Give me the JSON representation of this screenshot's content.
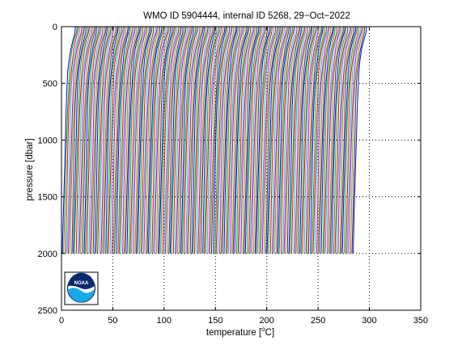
{
  "chart_data": {
    "type": "line",
    "title": "WMO ID 5904444, internal ID 5268, 29−Oct−2022",
    "xlabel_prefix": "temperature [",
    "xlabel_sup": "o",
    "xlabel_suffix": "C]",
    "ylabel": "pressure [dbar]",
    "xlim": [
      0,
      350
    ],
    "ylim": [
      2500,
      0
    ],
    "y_reversed": true,
    "x_ticks": [
      "0",
      "50",
      "100",
      "150",
      "200",
      "250",
      "300",
      "350"
    ],
    "y_ticks": [
      "0",
      "500",
      "1000",
      "1500",
      "2000",
      "2500"
    ],
    "grid": true,
    "grid_style": "dotted",
    "legend": "none",
    "series_colors": [
      "#0000ff",
      "#00aa00",
      "#ff0000",
      "#00bfbf",
      "#bf00bf",
      "#8a8a00",
      "#333333"
    ],
    "profile_shape": {
      "pressure_dbar": [
        0,
        50,
        100,
        200,
        300,
        400,
        500,
        700,
        1000,
        1500,
        2000
      ],
      "temperature_offset_C": [
        13.5,
        13.0,
        11.5,
        9.0,
        7.5,
        6.3,
        5.6,
        4.5,
        3.6,
        2.2,
        0.9
      ]
    },
    "profile_count": 190,
    "profile_offset_step_C": 1.5,
    "profile_max_pressure_dbar": 2000,
    "profile_top_pressure_dbar": 0
  },
  "logo": {
    "text": "NOAA"
  }
}
